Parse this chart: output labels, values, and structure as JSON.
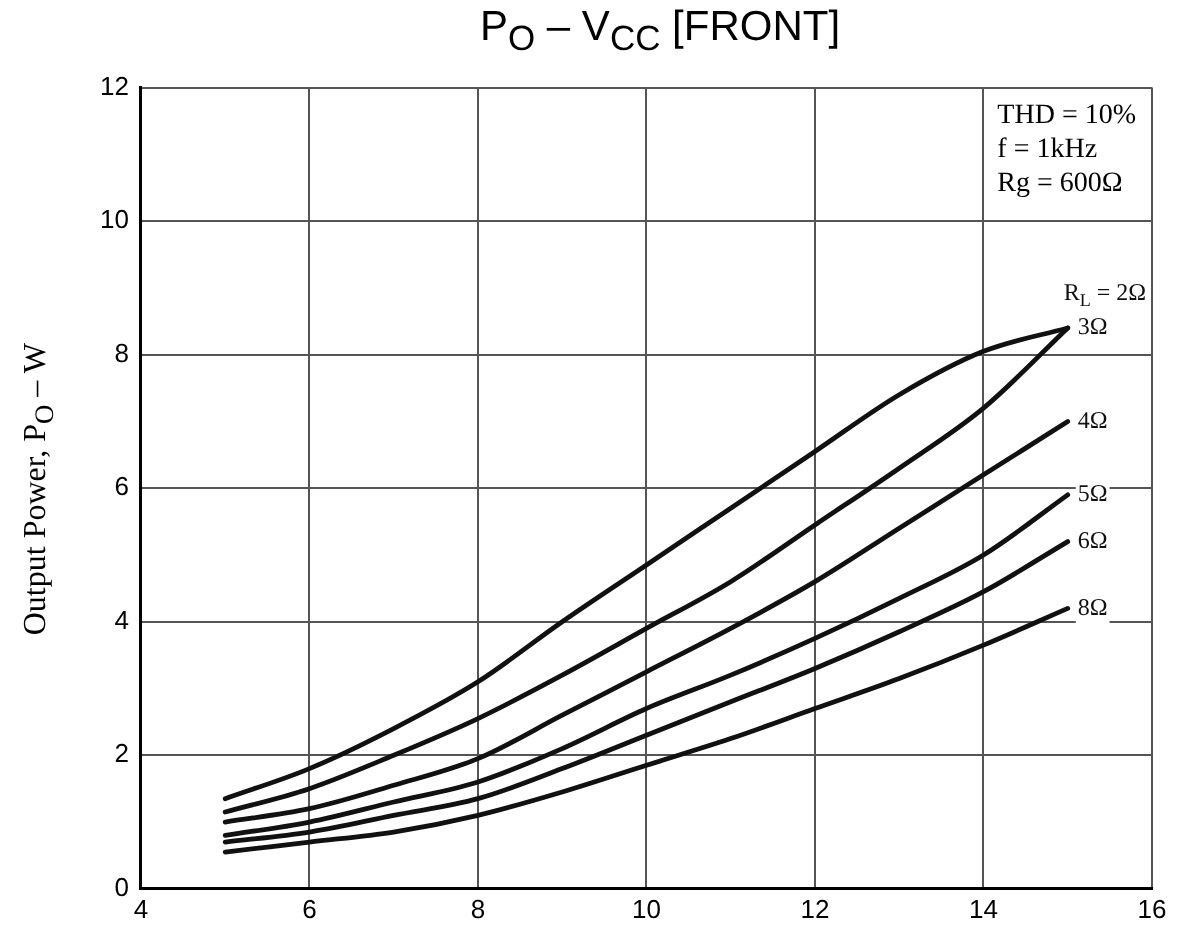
{
  "chart_data": {
    "type": "line",
    "title": "P$_{O}$ – V$_{CC}$ [FRONT]",
    "ylabel": "Output Power, P$_{O}$ – W",
    "annotations": [
      "THD = 10%",
      "f = 1kHz",
      "Rg = 600Ω"
    ],
    "x": [
      5,
      6,
      7,
      8,
      9,
      10,
      11,
      12,
      13,
      14,
      15
    ],
    "series": [
      {
        "name": "R$_{L}$ = 2Ω",
        "color": "#111111",
        "values": [
          1.35,
          1.8,
          2.4,
          3.1,
          4.0,
          4.85,
          5.7,
          6.55,
          7.4,
          8.05,
          8.4
        ]
      },
      {
        "name": "3Ω",
        "color": "#111111",
        "values": [
          1.15,
          1.5,
          2.0,
          2.55,
          3.2,
          3.9,
          4.6,
          5.45,
          6.3,
          7.2,
          8.4
        ]
      },
      {
        "name": "4Ω",
        "color": "#111111",
        "values": [
          1.0,
          1.2,
          1.55,
          1.95,
          2.6,
          3.25,
          3.9,
          4.6,
          5.4,
          6.2,
          7.0
        ]
      },
      {
        "name": "5Ω",
        "color": "#111111",
        "values": [
          0.8,
          1.0,
          1.3,
          1.6,
          2.1,
          2.7,
          3.2,
          3.75,
          4.35,
          5.0,
          5.9
        ]
      },
      {
        "name": "6Ω",
        "color": "#111111",
        "values": [
          0.7,
          0.85,
          1.1,
          1.35,
          1.8,
          2.3,
          2.8,
          3.3,
          3.85,
          4.45,
          5.2
        ]
      },
      {
        "name": "8Ω",
        "color": "#111111",
        "values": [
          0.55,
          0.7,
          0.85,
          1.1,
          1.45,
          1.85,
          2.25,
          2.7,
          3.15,
          3.65,
          4.2
        ]
      }
    ],
    "xlim": [
      4,
      16
    ],
    "xticks": [
      4,
      6,
      8,
      10,
      12,
      14,
      16
    ],
    "ylim": [
      0,
      12
    ],
    "yticks": [
      0,
      2,
      4,
      6,
      8,
      10,
      12
    ],
    "grid": true,
    "legend": false,
    "marker": "none",
    "line_style": "solid"
  }
}
